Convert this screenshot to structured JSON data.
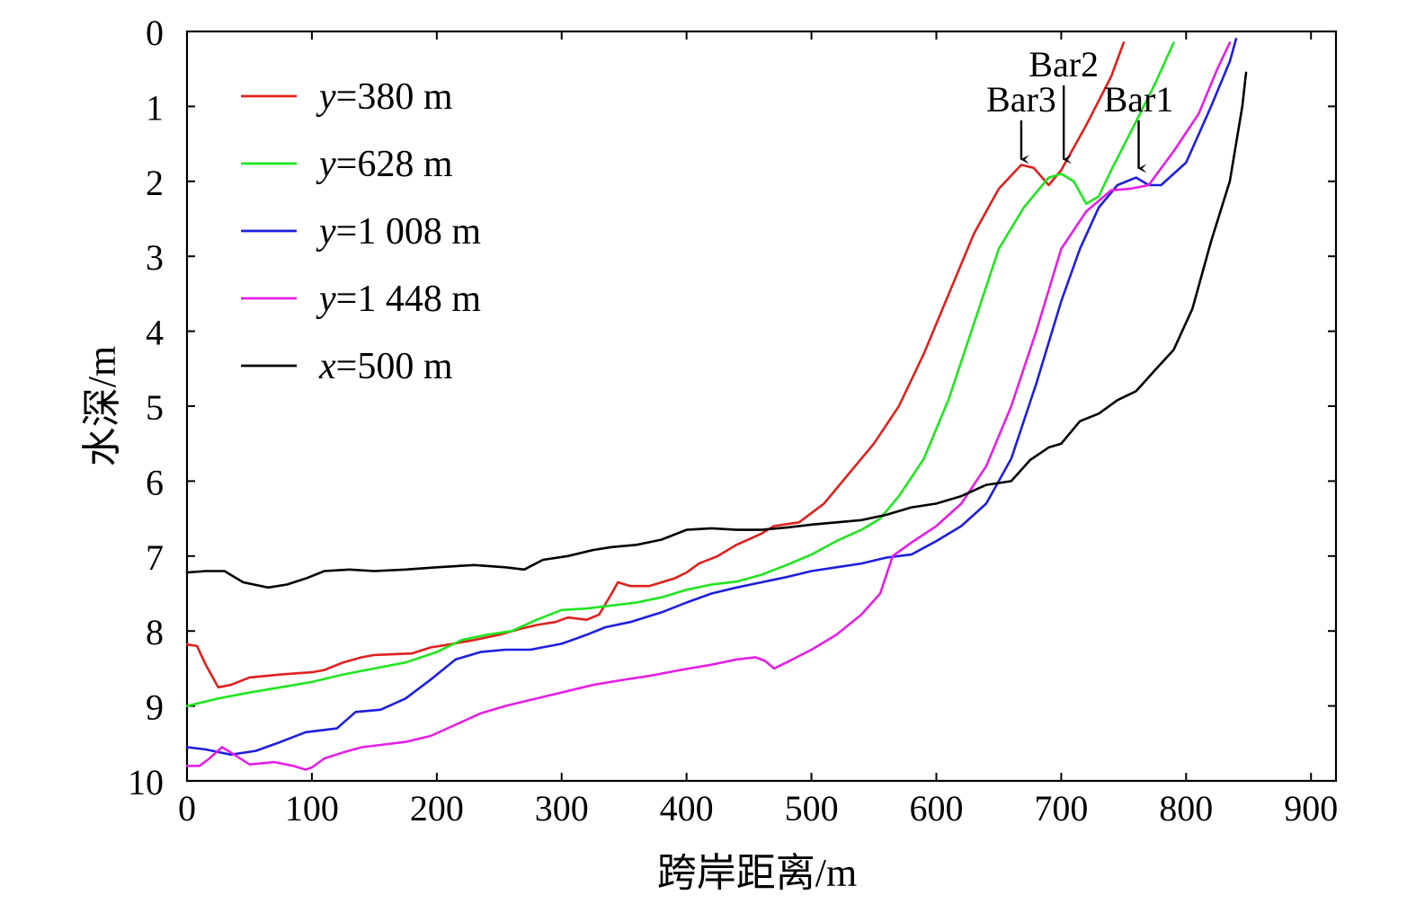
{
  "chart_data": {
    "type": "line",
    "xlabel": "跨岸距离/m",
    "ylabel": "水深/m",
    "xlim": [
      0,
      920
    ],
    "ylim": [
      0,
      10
    ],
    "y_inverted": true,
    "grid": false,
    "legend_position": "top-left",
    "x_ticks": [
      "0",
      "100",
      "200",
      "300",
      "400",
      "500",
      "600",
      "700",
      "800",
      "900"
    ],
    "y_ticks": [
      "0",
      "1",
      "2",
      "3",
      "4",
      "5",
      "6",
      "7",
      "8",
      "9",
      "10"
    ],
    "series": [
      {
        "name": "y=380 m",
        "label_var": "y",
        "label_rest": "=380 m",
        "color": "#e0201c",
        "x": [
          0,
          8,
          15,
          25,
          35,
          50,
          75,
          100,
          110,
          125,
          140,
          150,
          180,
          195,
          210,
          230,
          250,
          265,
          280,
          295,
          305,
          320,
          330,
          340,
          345,
          355,
          370,
          380,
          390,
          400,
          410,
          425,
          440,
          460,
          470,
          490,
          510,
          530,
          550,
          570,
          590,
          610,
          630,
          650,
          668,
          678,
          690,
          700,
          720,
          740,
          750
        ],
        "y": [
          8.18,
          8.2,
          8.45,
          8.75,
          8.72,
          8.62,
          8.58,
          8.55,
          8.52,
          8.42,
          8.35,
          8.32,
          8.3,
          8.22,
          8.18,
          8.12,
          8.05,
          7.98,
          7.92,
          7.88,
          7.82,
          7.85,
          7.78,
          7.5,
          7.35,
          7.4,
          7.4,
          7.35,
          7.3,
          7.22,
          7.1,
          7.0,
          6.85,
          6.7,
          6.6,
          6.55,
          6.3,
          5.9,
          5.5,
          5.0,
          4.3,
          3.5,
          2.7,
          2.1,
          1.78,
          1.82,
          2.05,
          1.85,
          1.25,
          0.6,
          0.15
        ]
      },
      {
        "name": "y=628 m",
        "label_var": "y",
        "label_rest": "=628 m",
        "color": "#1ee61e",
        "x": [
          0,
          25,
          50,
          75,
          100,
          125,
          150,
          175,
          200,
          220,
          240,
          260,
          280,
          300,
          320,
          340,
          360,
          380,
          400,
          420,
          440,
          460,
          480,
          500,
          520,
          540,
          555,
          570,
          590,
          610,
          630,
          650,
          670,
          690,
          700,
          710,
          720,
          730,
          740,
          760,
          775,
          790
        ],
        "y": [
          9.0,
          8.9,
          8.82,
          8.75,
          8.68,
          8.58,
          8.5,
          8.42,
          8.28,
          8.12,
          8.05,
          8.0,
          7.85,
          7.72,
          7.7,
          7.66,
          7.62,
          7.55,
          7.45,
          7.38,
          7.34,
          7.25,
          7.12,
          6.98,
          6.8,
          6.65,
          6.5,
          6.2,
          5.7,
          4.9,
          3.9,
          2.9,
          2.35,
          1.95,
          1.9,
          2.0,
          2.3,
          2.2,
          1.85,
          1.2,
          0.7,
          0.15
        ]
      },
      {
        "name": "y=1 008 m",
        "label_var": "y",
        "label_rest": "=1 008 m",
        "color": "#1e1ee0",
        "x": [
          0,
          15,
          35,
          55,
          75,
          95,
          110,
          120,
          135,
          155,
          175,
          195,
          215,
          235,
          255,
          275,
          300,
          320,
          335,
          355,
          380,
          400,
          420,
          440,
          460,
          480,
          500,
          520,
          540,
          560,
          580,
          600,
          620,
          640,
          660,
          680,
          700,
          715,
          730,
          745,
          760,
          770,
          780,
          800,
          820,
          835,
          840
        ],
        "y": [
          9.55,
          9.58,
          9.65,
          9.6,
          9.48,
          9.35,
          9.32,
          9.3,
          9.08,
          9.05,
          8.9,
          8.65,
          8.38,
          8.28,
          8.25,
          8.25,
          8.17,
          8.05,
          7.95,
          7.88,
          7.75,
          7.62,
          7.5,
          7.42,
          7.35,
          7.28,
          7.2,
          7.15,
          7.1,
          7.02,
          6.98,
          6.8,
          6.6,
          6.3,
          5.7,
          4.7,
          3.6,
          2.9,
          2.35,
          2.05,
          1.95,
          2.05,
          2.05,
          1.75,
          1.0,
          0.4,
          0.1
        ]
      },
      {
        "name": "y=1 448 m",
        "label_var": "y",
        "label_rest": "=1 448 m",
        "color": "#e61ee6",
        "x": [
          0,
          10,
          18,
          28,
          35,
          50,
          70,
          85,
          95,
          100,
          110,
          125,
          140,
          155,
          175,
          195,
          215,
          235,
          255,
          275,
          300,
          325,
          350,
          370,
          395,
          420,
          440,
          455,
          463,
          470,
          480,
          500,
          520,
          540,
          555,
          565,
          580,
          600,
          620,
          640,
          660,
          680,
          700,
          720,
          740,
          755,
          770,
          790,
          810,
          825,
          835
        ],
        "y": [
          9.8,
          9.8,
          9.7,
          9.55,
          9.62,
          9.78,
          9.75,
          9.8,
          9.85,
          9.82,
          9.7,
          9.62,
          9.55,
          9.52,
          9.48,
          9.4,
          9.25,
          9.1,
          9.0,
          8.92,
          8.82,
          8.72,
          8.65,
          8.6,
          8.52,
          8.45,
          8.38,
          8.35,
          8.4,
          8.5,
          8.42,
          8.25,
          8.05,
          7.78,
          7.5,
          7.0,
          6.82,
          6.6,
          6.3,
          5.8,
          5.0,
          4.0,
          2.9,
          2.4,
          2.12,
          2.1,
          2.05,
          1.6,
          1.1,
          0.5,
          0.15
        ]
      },
      {
        "name": "x=500 m",
        "label_var": "x",
        "label_rest": "=500 m",
        "color": "#000000",
        "x": [
          0,
          15,
          30,
          45,
          65,
          80,
          95,
          110,
          130,
          150,
          175,
          200,
          230,
          255,
          270,
          285,
          305,
          325,
          340,
          360,
          380,
          400,
          420,
          440,
          460,
          480,
          500,
          520,
          540,
          560,
          580,
          600,
          620,
          640,
          660,
          675,
          690,
          700,
          715,
          730,
          745,
          760,
          775,
          790,
          805,
          820,
          835,
          845,
          848
        ],
        "y": [
          7.22,
          7.2,
          7.2,
          7.35,
          7.42,
          7.38,
          7.3,
          7.2,
          7.18,
          7.2,
          7.18,
          7.15,
          7.12,
          7.15,
          7.18,
          7.05,
          7.0,
          6.92,
          6.88,
          6.85,
          6.78,
          6.65,
          6.63,
          6.65,
          6.65,
          6.62,
          6.58,
          6.55,
          6.52,
          6.45,
          6.35,
          6.3,
          6.2,
          6.05,
          6.0,
          5.72,
          5.55,
          5.5,
          5.2,
          5.1,
          4.92,
          4.8,
          4.52,
          4.25,
          3.7,
          2.8,
          2.0,
          1.0,
          0.55
        ]
      }
    ],
    "annotations": [
      {
        "text": "Bar3",
        "x": 668,
        "y": 1.78
      },
      {
        "text": "Bar2",
        "x": 702,
        "y": 1.78
      },
      {
        "text": "Bar1",
        "x": 762,
        "y": 1.9
      }
    ]
  }
}
